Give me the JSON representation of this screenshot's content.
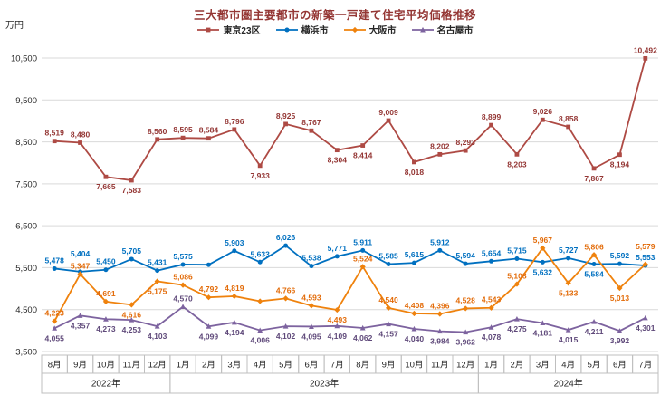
{
  "chart_data": {
    "type": "line",
    "title": "三大都市圏主要都市の新築一戸建て住宅平均価格推移",
    "unit_label": "万円",
    "legend_position": "top",
    "grid": true,
    "y_axis": {
      "min": 3500,
      "max": 10500,
      "step": 1000,
      "tick_labels": [
        "10,500",
        "9,500",
        "8,500",
        "7,500",
        "6,500",
        "5,500",
        "4,500",
        "3,500"
      ]
    },
    "x_axis": {
      "months": [
        "8月",
        "9月",
        "10月",
        "11月",
        "12月",
        "1月",
        "2月",
        "3月",
        "4月",
        "5月",
        "6月",
        "7月",
        "8月",
        "9月",
        "10月",
        "11月",
        "12月",
        "1月",
        "2月",
        "3月",
        "4月",
        "5月",
        "6月",
        "7月"
      ],
      "year_groups": [
        {
          "label": "2022年",
          "span": 5
        },
        {
          "label": "2023年",
          "span": 12
        },
        {
          "label": "2024年",
          "span": 7
        }
      ]
    },
    "series": [
      {
        "name": "東京23区",
        "color": "#ae4a44",
        "label_color": "#943634",
        "marker": "square",
        "values": [
          8519,
          8480,
          7665,
          7583,
          8560,
          8595,
          8584,
          8796,
          7933,
          8925,
          8767,
          8304,
          8414,
          9009,
          8018,
          8202,
          8293,
          8899,
          8203,
          9026,
          8858,
          7867,
          8194,
          10492
        ],
        "labels": [
          "8,519",
          "8,480",
          "7,665",
          "7,583",
          "8,560",
          "8,595",
          "8,584",
          "8,796",
          "7,933",
          "8,925",
          "8,767",
          "8,304",
          "8,414",
          "9,009",
          "8,018",
          "8,202",
          "8,293",
          "8,899",
          "8,203",
          "9,026",
          "8,858",
          "7,867",
          "8,194",
          "10,492"
        ],
        "label_pos": [
          "a",
          "a",
          "b",
          "b",
          "a",
          "a",
          "a",
          "a",
          "b",
          "a",
          "a",
          "b",
          "b",
          "a",
          "b",
          "a",
          "a",
          "a",
          "b",
          "a",
          "a",
          "b",
          "b",
          "a"
        ]
      },
      {
        "name": "横浜市",
        "color": "#0070c0",
        "label_color": "#0070c0",
        "marker": "circle",
        "values": [
          5478,
          5404,
          5450,
          5705,
          5431,
          5575,
          5570,
          5903,
          5633,
          6026,
          5538,
          5771,
          5911,
          5585,
          5615,
          5912,
          5594,
          5654,
          5715,
          5632,
          5727,
          5584,
          5592,
          5553
        ],
        "labels": [
          "5,478",
          "5,404",
          "5,450",
          "5,705",
          "5,431",
          "5,575",
          "",
          "5,903",
          "5,633",
          "6,026",
          "5,538",
          "5,771",
          "5,911",
          "5,585",
          "5,615",
          "5,912",
          "5,594",
          "5,654",
          "5,715",
          "5,632",
          "5,727",
          "5,584",
          "5,592",
          "5,553"
        ],
        "label_pos": [
          "a",
          "A",
          "a",
          "a",
          "a",
          "a",
          "a",
          "a",
          "a",
          "a",
          "a",
          "a",
          "a",
          "a",
          "a",
          "a",
          "a",
          "a",
          "a",
          "b",
          "a",
          "b",
          "a",
          "a"
        ]
      },
      {
        "name": "大阪市",
        "color": "#ef820d",
        "label_color": "#e36c0a",
        "marker": "diamond",
        "values": [
          4223,
          5347,
          4691,
          4616,
          5175,
          5086,
          4792,
          4819,
          4700,
          4766,
          4593,
          4493,
          5524,
          4540,
          4408,
          4396,
          4528,
          4543,
          5108,
          5967,
          5133,
          5806,
          5013,
          5579
        ],
        "labels": [
          "4,223",
          "5,347",
          "4,691",
          "4,616",
          "5,175",
          "5,086",
          "4,792",
          "4,819",
          "",
          "4,766",
          "4,593",
          "4,493",
          "5,524",
          "4,540",
          "4,408",
          "4,396",
          "4,528",
          "4,543",
          "5,108",
          "5,967",
          "5,133",
          "5,806",
          "5,013",
          "5,579"
        ],
        "label_pos": [
          "a",
          "a",
          "a",
          "b",
          "b",
          "a",
          "a",
          "a",
          "a",
          "a",
          "a",
          "b",
          "a",
          "a",
          "a",
          "a",
          "a",
          "a",
          "a",
          "a",
          "b",
          "a",
          "b",
          "A"
        ]
      },
      {
        "name": "名古屋市",
        "color": "#7d639f",
        "label_color": "#5f497a",
        "marker": "triangle",
        "values": [
          4055,
          4357,
          4273,
          4253,
          4103,
          4570,
          4099,
          4194,
          4006,
          4102,
          4095,
          4109,
          4062,
          4157,
          4040,
          3984,
          3962,
          4078,
          4275,
          4181,
          4015,
          4211,
          3992,
          4301
        ],
        "labels": [
          "4,055",
          "4,357",
          "4,273",
          "4,253",
          "4,103",
          "4,570",
          "4,099",
          "4,194",
          "4,006",
          "4,102",
          "4,095",
          "4,109",
          "4,062",
          "4,157",
          "4,040",
          "3,984",
          "3,962",
          "4,078",
          "4,275",
          "4,181",
          "4,015",
          "4,211",
          "3,992",
          "4,301"
        ],
        "label_pos": [
          "b",
          "b",
          "b",
          "b",
          "b",
          "a",
          "b",
          "b",
          "b",
          "b",
          "b",
          "b",
          "b",
          "b",
          "b",
          "b",
          "b",
          "b",
          "b",
          "b",
          "b",
          "b",
          "b",
          "b"
        ]
      }
    ]
  }
}
